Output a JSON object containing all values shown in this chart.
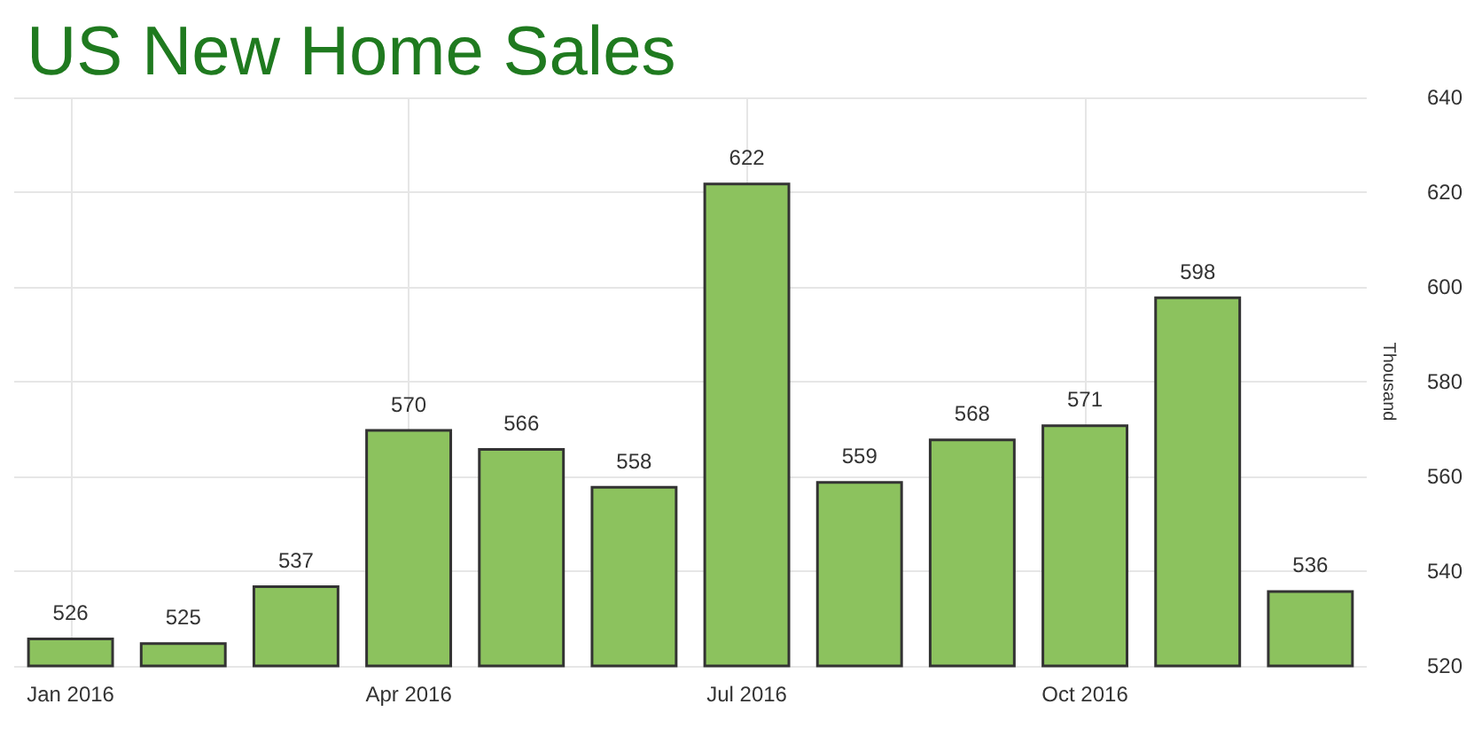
{
  "chart_data": {
    "type": "bar",
    "title": "US New Home Sales",
    "ylabel": "Thousand",
    "categories": [
      "Jan 2016",
      null,
      null,
      "Apr 2016",
      null,
      null,
      "Jul 2016",
      null,
      null,
      "Oct 2016",
      null,
      null
    ],
    "values": [
      526,
      525,
      537,
      570,
      566,
      558,
      622,
      559,
      568,
      571,
      598,
      536
    ],
    "color": "#8cc25e",
    "ylim": [
      520,
      640
    ],
    "yticks": [
      520,
      540,
      560,
      580,
      600,
      620,
      640
    ],
    "grid": true,
    "data_labels": true
  }
}
